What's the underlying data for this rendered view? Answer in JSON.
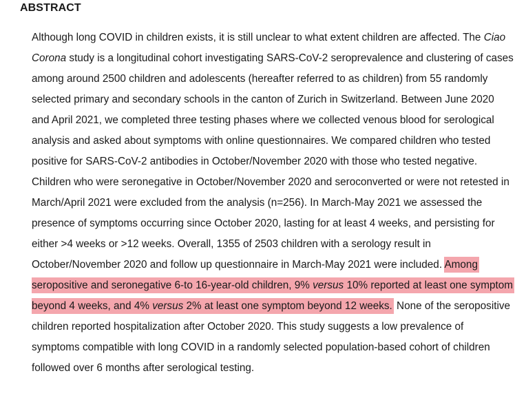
{
  "section": {
    "heading": "ABSTRACT"
  },
  "abstract": {
    "p1": "Although long COVID in children exists, it is still unclear to what extent children are affected. The ",
    "study_name": "Ciao Corona",
    "p2": " study is a longitudinal cohort investigating SARS-CoV-2 seroprevalence and clustering of cases among around 2500 children and adolescents (hereafter referred to as children) from 55 randomly selected primary and secondary schools in the canton of Zurich in Switzerland. Between June 2020 and April 2021, we completed three testing phases where we collected venous blood for serological analysis and asked about symptoms with online questionnaires. We compared children who tested positive for SARS-CoV-2 antibodies in October/November 2020 with those who tested negative. Children who were seronegative in October/November 2020 and seroconverted or were not retested in March/April 2021 were excluded from the analysis (n=256). In March-May 2021 we assessed the presence of symptoms occurring since October 2020, lasting for at least 4 weeks, and persisting for either >4 weeks or >12 weeks. Overall, 1355 of 2503 children with a serology result in October/November 2020 and follow up questionnaire in March-May 2021 were included.",
    "hl1": "Among seropositive and seronegative 6-to 16-year-old children, 9% ",
    "versus1": "versus",
    "hl2": " 10% reported at least one symptom beyond 4 weeks, and 4% ",
    "versus2": "versus",
    "hl3": " 2% at least one symptom beyond 12 weeks.",
    "p3": " None of the seropositive children reported hospitalization after October 2020. This study suggests a low prevalence of symptoms compatible with long COVID in a randomly selected population-based cohort of children followed over 6 months after serological testing.",
    "highlight_color": "#f4a6ad"
  }
}
